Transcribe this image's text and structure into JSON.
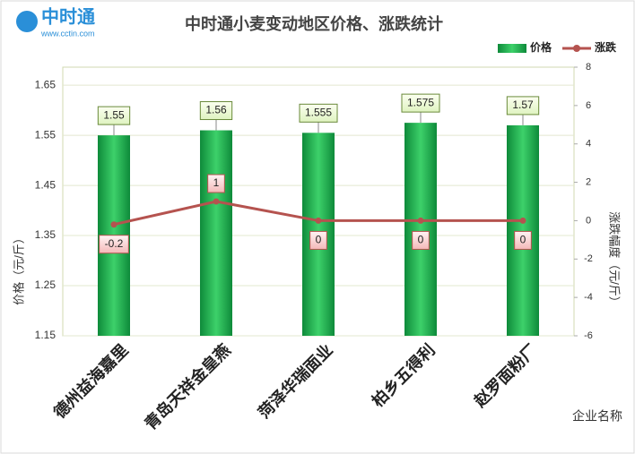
{
  "logo": {
    "name": "中时通",
    "url": "www.cctin.com"
  },
  "chart_data": {
    "type": "bar",
    "title": "中时通小麦变动地区价格、涨跌统计",
    "categories": [
      "德州益海嘉里",
      "青岛天祥金皇燕",
      "菏泽华瑞面业",
      "柏乡五得利",
      "赵罗面粉厂"
    ],
    "series": [
      {
        "name": "价格",
        "type": "bar",
        "color": "#1aa34a",
        "values": [
          1.55,
          1.56,
          1.555,
          1.575,
          1.57
        ]
      },
      {
        "name": "涨跌",
        "type": "line",
        "axis": "y2",
        "color": "#b5534f",
        "values": [
          -0.2,
          1,
          0,
          0,
          0
        ]
      }
    ],
    "ylabel": "价格（元/斤）",
    "y2label": "涨跌幅度（元/斤）",
    "xlabel": "企业名称",
    "ylim": [
      1.15,
      1.686
    ],
    "yticks": [
      1.15,
      1.25,
      1.35,
      1.45,
      1.55,
      1.65
    ],
    "y2lim": [
      -6,
      8
    ],
    "y2ticks": [
      -6,
      -4,
      -2,
      0,
      2,
      4,
      6,
      8
    ],
    "grid": true,
    "legend": "top-right"
  }
}
